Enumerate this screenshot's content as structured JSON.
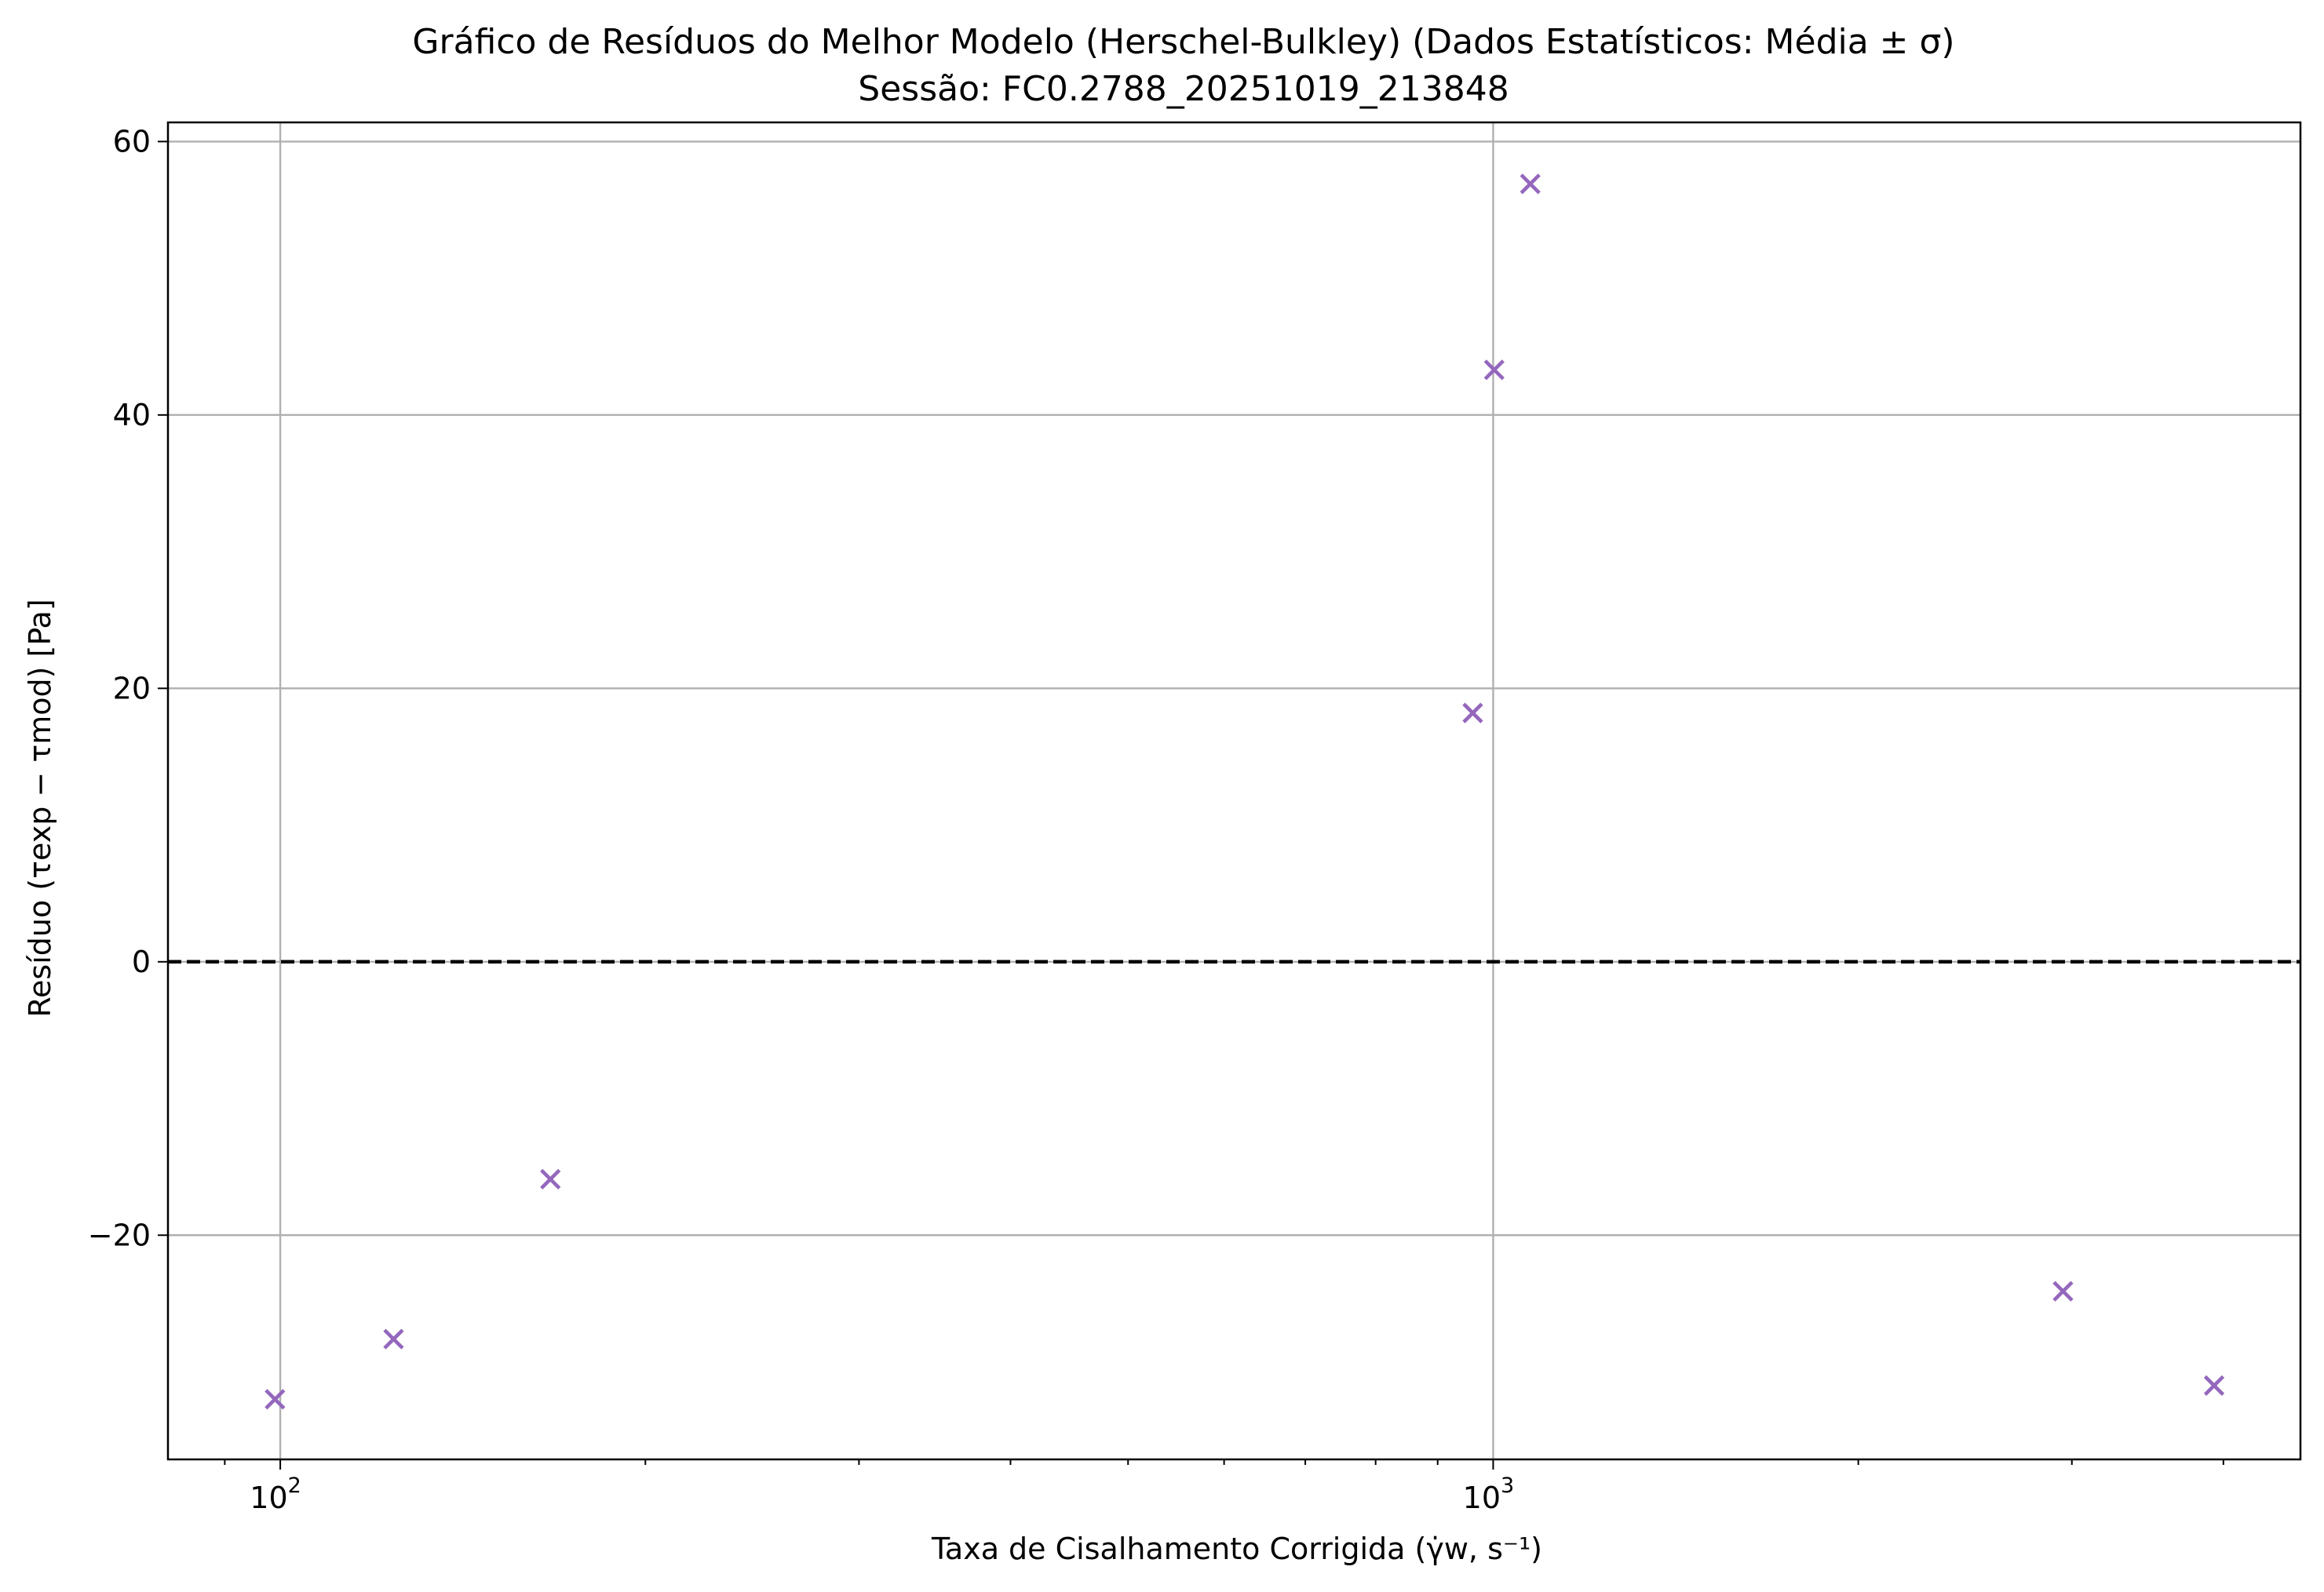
{
  "chart_data": {
    "type": "scatter",
    "title": "Gráfico de Resíduos do Melhor Modelo (Herschel-Bulkley) (Dados Estatísticos: Média ± σ)",
    "subtitle": "Sessão: FC0.2788_20251019_213848",
    "xlabel": "Taxa de Cisalhamento Corrigida (γ̇w, s⁻¹)",
    "ylabel": "Resíduo (τexp − τmod) [Pa]",
    "xscale": "log",
    "xlim": [
      80.8,
      4630
    ],
    "ylim": [
      -36.4,
      61.4
    ],
    "xticks": [
      {
        "value": 100,
        "base": "10",
        "exp": "2"
      },
      {
        "value": 1000,
        "base": "10",
        "exp": "3"
      }
    ],
    "yticks": [
      {
        "value": -20,
        "label": "−20"
      },
      {
        "value": 0,
        "label": "0"
      },
      {
        "value": 20,
        "label": "20"
      },
      {
        "value": 40,
        "label": "40"
      },
      {
        "value": 60,
        "label": "60"
      }
    ],
    "grid": true,
    "reference_line": {
      "y": 0,
      "style": "dashed",
      "color": "#000000"
    },
    "marker": "x",
    "color": "#9467bd",
    "x": [
      99,
      124,
      167,
      962,
      1002,
      1073,
      2950,
      3930
    ],
    "y": [
      -32,
      -27.6,
      -15.9,
      18.2,
      43.3,
      56.9,
      -24.1,
      -31
    ]
  }
}
